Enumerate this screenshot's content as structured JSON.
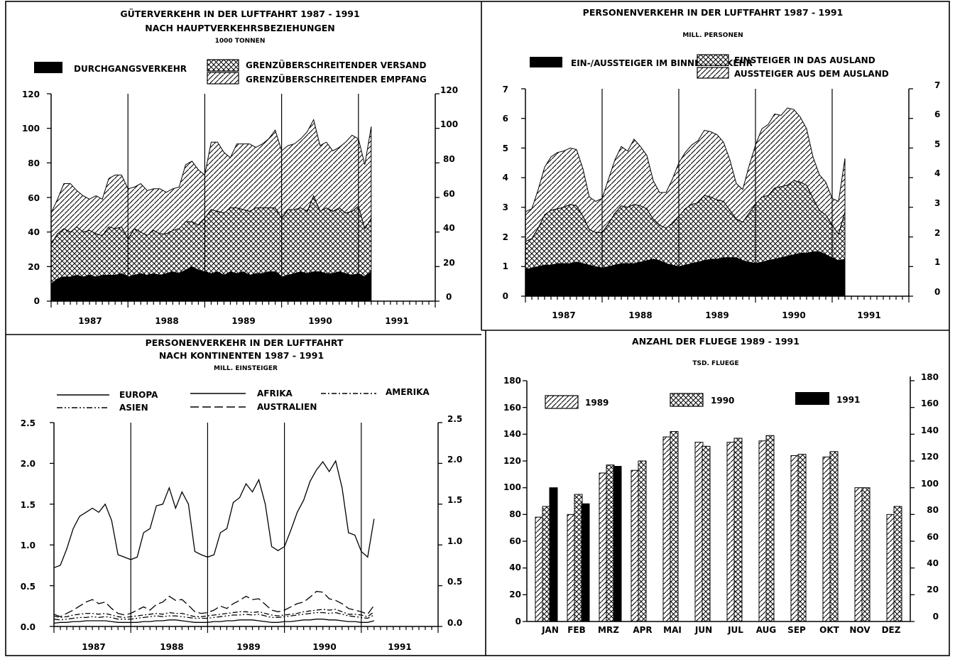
{
  "chart_data": [
    {
      "type": "area",
      "title": "GÜTERVERKEHR IN DER LUFTFAHRT   1987 - 1991",
      "subtitle": "NACH HAUPTVERKEHRSBEZIEHUNGEN",
      "unit": "1000 TONNEN",
      "x_labels": [
        "1987",
        "1988",
        "1989",
        "1990",
        "1991"
      ],
      "ylim": [
        0,
        120
      ],
      "yticks": [
        0,
        20,
        40,
        60,
        80,
        100,
        120
      ],
      "stacked": true,
      "n_months": 51,
      "series": [
        {
          "name": "DURCHGANGSVERKEHR",
          "fill": "solid",
          "values": [
            10,
            13,
            14,
            14,
            15,
            14,
            15,
            14,
            15,
            15,
            15,
            16,
            14,
            15,
            16,
            15,
            16,
            15,
            16,
            17,
            16,
            18,
            20,
            18,
            17,
            16,
            17,
            15,
            17,
            16,
            17,
            15,
            16,
            16,
            17,
            17,
            14,
            15,
            16,
            17,
            16,
            17,
            17,
            16,
            16,
            17,
            16,
            15,
            16,
            14,
            17
          ]
        },
        {
          "name": "GRENZÜBERSCHREITENDER VERSAND",
          "fill": "crosshatch",
          "values": [
            23,
            26,
            28,
            26,
            28,
            26,
            26,
            25,
            23,
            28,
            27,
            27,
            22,
            27,
            24,
            23,
            25,
            24,
            23,
            24,
            26,
            28,
            26,
            26,
            31,
            37,
            35,
            36,
            37,
            38,
            36,
            37,
            38,
            38,
            37,
            37,
            34,
            38,
            37,
            37,
            36,
            44,
            35,
            38,
            36,
            37,
            35,
            37,
            39,
            28,
            31
          ]
        },
        {
          "name": "GRENZÜBERSCHREITENDER EMPFANG",
          "fill": "hatch",
          "values": [
            18,
            20,
            26,
            28,
            21,
            21,
            18,
            22,
            21,
            28,
            31,
            30,
            29,
            24,
            28,
            26,
            24,
            26,
            24,
            24,
            24,
            33,
            35,
            32,
            25,
            39,
            40,
            35,
            29,
            37,
            38,
            39,
            35,
            37,
            40,
            45,
            39,
            37,
            38,
            40,
            46,
            44,
            38,
            38,
            35,
            35,
            41,
            44,
            39,
            37,
            53
          ]
        }
      ]
    },
    {
      "type": "area",
      "title": "PERSONENVERKEHR IN DER LUFTFAHRT 1987 - 1991",
      "unit": "MILL. PERSONEN",
      "x_labels": [
        "1987",
        "1988",
        "1989",
        "1990",
        "1991"
      ],
      "ylim": [
        0,
        7
      ],
      "yticks": [
        0,
        1,
        2,
        3,
        4,
        5,
        6,
        7
      ],
      "stacked": true,
      "n_months": 51,
      "series": [
        {
          "name": "EIN-/AUSSTEIGER IM BINNENVERKEHR",
          "fill": "solid",
          "values": [
            0.9,
            0.95,
            1.0,
            1.05,
            1.05,
            1.1,
            1.1,
            1.1,
            1.15,
            1.1,
            1.05,
            1.0,
            0.95,
            1.0,
            1.05,
            1.1,
            1.1,
            1.1,
            1.15,
            1.2,
            1.25,
            1.2,
            1.1,
            1.05,
            1.0,
            1.05,
            1.1,
            1.15,
            1.2,
            1.25,
            1.25,
            1.3,
            1.3,
            1.3,
            1.2,
            1.15,
            1.1,
            1.15,
            1.2,
            1.25,
            1.3,
            1.35,
            1.4,
            1.45,
            1.45,
            1.5,
            1.5,
            1.4,
            1.3,
            1.2,
            1.25
          ]
        },
        {
          "name": "EINSTEIGER IN DAS AUSLAND",
          "fill": "crosshatch",
          "values": [
            0.95,
            1.0,
            1.3,
            1.7,
            1.85,
            1.85,
            1.9,
            2.0,
            1.9,
            1.6,
            1.2,
            1.15,
            1.2,
            1.45,
            1.75,
            1.95,
            1.9,
            2.0,
            1.9,
            1.75,
            1.35,
            1.2,
            1.2,
            1.4,
            1.7,
            1.9,
            2.0,
            2.0,
            2.2,
            2.1,
            2.0,
            1.9,
            1.6,
            1.3,
            1.3,
            1.65,
            2.0,
            2.2,
            2.2,
            2.4,
            2.4,
            2.4,
            2.5,
            2.4,
            2.3,
            1.8,
            1.4,
            1.35,
            1.1,
            0.9,
            1.6
          ]
        },
        {
          "name": "AUSSTEIGER AUS DEM AUSLAND",
          "fill": "hatch",
          "values": [
            1.0,
            1.0,
            1.3,
            1.6,
            1.8,
            1.9,
            1.9,
            1.9,
            1.9,
            1.6,
            1.1,
            1.05,
            1.15,
            1.5,
            1.8,
            2.0,
            1.9,
            2.2,
            2.0,
            1.8,
            1.3,
            1.1,
            1.2,
            1.5,
            1.8,
            1.9,
            2.0,
            2.1,
            2.2,
            2.2,
            2.2,
            2.0,
            1.7,
            1.2,
            1.1,
            1.6,
            2.0,
            2.3,
            2.4,
            2.5,
            2.4,
            2.6,
            2.4,
            2.2,
            1.9,
            1.4,
            1.2,
            1.1,
            0.9,
            1.1,
            1.8
          ]
        }
      ]
    },
    {
      "type": "line",
      "title": "PERSONENVERKEHR IN DER LUFTFAHRT",
      "subtitle": "NACH KONTINENTEN 1987 - 1991",
      "unit": "MILL. EINSTEIGER",
      "x_labels": [
        "1987",
        "1988",
        "1989",
        "1990",
        "1991"
      ],
      "ylim": [
        0,
        2.5
      ],
      "ytick_labels": [
        "0.0",
        "0.5",
        "1.0",
        "1.5",
        "2.0",
        "2.5"
      ],
      "yticks": [
        0,
        0.5,
        1.0,
        1.5,
        2.0,
        2.5
      ],
      "n_months": 51,
      "series": [
        {
          "name": "EUROPA",
          "dash": "solid",
          "values": [
            0.72,
            0.75,
            0.95,
            1.2,
            1.35,
            1.4,
            1.45,
            1.4,
            1.5,
            1.3,
            0.88,
            0.85,
            0.82,
            0.85,
            1.15,
            1.2,
            1.48,
            1.5,
            1.7,
            1.45,
            1.65,
            1.5,
            0.92,
            0.88,
            0.85,
            0.88,
            1.15,
            1.2,
            1.52,
            1.58,
            1.75,
            1.65,
            1.8,
            1.5,
            0.98,
            0.93,
            0.98,
            1.18,
            1.4,
            1.55,
            1.78,
            1.92,
            2.02,
            1.9,
            2.03,
            1.7,
            1.15,
            1.12,
            0.92,
            0.85,
            1.32
          ]
        },
        {
          "name": "AFRIKA",
          "dash": "solid",
          "values": [
            0.04,
            0.05,
            0.05,
            0.06,
            0.06,
            0.07,
            0.07,
            0.07,
            0.07,
            0.06,
            0.05,
            0.05,
            0.05,
            0.05,
            0.06,
            0.06,
            0.07,
            0.07,
            0.08,
            0.08,
            0.07,
            0.06,
            0.05,
            0.05,
            0.05,
            0.06,
            0.06,
            0.07,
            0.07,
            0.08,
            0.08,
            0.08,
            0.07,
            0.06,
            0.05,
            0.05,
            0.06,
            0.06,
            0.07,
            0.08,
            0.08,
            0.09,
            0.09,
            0.08,
            0.08,
            0.07,
            0.06,
            0.06,
            0.05,
            0.05,
            0.07
          ]
        },
        {
          "name": "AMERIKA",
          "dash": "dashdot",
          "values": [
            0.13,
            0.11,
            0.12,
            0.14,
            0.15,
            0.16,
            0.16,
            0.15,
            0.16,
            0.14,
            0.12,
            0.11,
            0.12,
            0.13,
            0.14,
            0.15,
            0.16,
            0.15,
            0.17,
            0.16,
            0.16,
            0.14,
            0.12,
            0.12,
            0.13,
            0.14,
            0.15,
            0.16,
            0.17,
            0.18,
            0.18,
            0.17,
            0.18,
            0.16,
            0.14,
            0.13,
            0.14,
            0.15,
            0.16,
            0.18,
            0.19,
            0.2,
            0.21,
            0.2,
            0.21,
            0.18,
            0.15,
            0.15,
            0.14,
            0.12,
            0.18
          ]
        },
        {
          "name": "ASIEN",
          "dash": "dashdotdot",
          "values": [
            0.09,
            0.08,
            0.09,
            0.1,
            0.11,
            0.11,
            0.12,
            0.11,
            0.12,
            0.11,
            0.09,
            0.09,
            0.09,
            0.1,
            0.11,
            0.12,
            0.13,
            0.12,
            0.13,
            0.13,
            0.12,
            0.11,
            0.1,
            0.1,
            0.1,
            0.11,
            0.12,
            0.13,
            0.14,
            0.14,
            0.15,
            0.14,
            0.15,
            0.13,
            0.11,
            0.11,
            0.12,
            0.13,
            0.14,
            0.15,
            0.16,
            0.17,
            0.17,
            0.16,
            0.17,
            0.15,
            0.13,
            0.12,
            0.11,
            0.1,
            0.14
          ]
        },
        {
          "name": "AUSTRALIEN",
          "dash": "longdash",
          "values": [
            0.15,
            0.12,
            0.16,
            0.2,
            0.25,
            0.3,
            0.33,
            0.28,
            0.3,
            0.22,
            0.16,
            0.14,
            0.16,
            0.2,
            0.24,
            0.2,
            0.27,
            0.3,
            0.37,
            0.32,
            0.33,
            0.26,
            0.18,
            0.16,
            0.17,
            0.2,
            0.25,
            0.22,
            0.28,
            0.32,
            0.37,
            0.33,
            0.34,
            0.27,
            0.2,
            0.18,
            0.2,
            0.24,
            0.28,
            0.3,
            0.36,
            0.43,
            0.42,
            0.34,
            0.32,
            0.28,
            0.22,
            0.2,
            0.18,
            0.15,
            0.26
          ]
        }
      ]
    },
    {
      "type": "bar",
      "title": "ANZAHL DER FLUEGE 1989 - 1991",
      "unit": "TSD. FLUEGE",
      "categories": [
        "JAN",
        "FEB",
        "MRZ",
        "APR",
        "MAI",
        "JUN",
        "JUL",
        "AUG",
        "SEP",
        "OKT",
        "NOV",
        "DEZ"
      ],
      "ylim": [
        0,
        180
      ],
      "yticks": [
        0,
        20,
        40,
        60,
        80,
        100,
        120,
        140,
        160,
        180
      ],
      "series": [
        {
          "name": "1989",
          "fill": "hatch",
          "values": [
            78,
            80,
            111,
            113,
            138,
            134,
            134,
            135,
            124,
            123,
            100,
            80
          ]
        },
        {
          "name": "1990",
          "fill": "crosshatch",
          "values": [
            86,
            95,
            117,
            120,
            142,
            131,
            137,
            139,
            125,
            127,
            100,
            86
          ]
        },
        {
          "name": "1991",
          "fill": "solid",
          "values": [
            100,
            88,
            116,
            null,
            null,
            null,
            null,
            null,
            null,
            null,
            null,
            null
          ]
        }
      ]
    }
  ]
}
